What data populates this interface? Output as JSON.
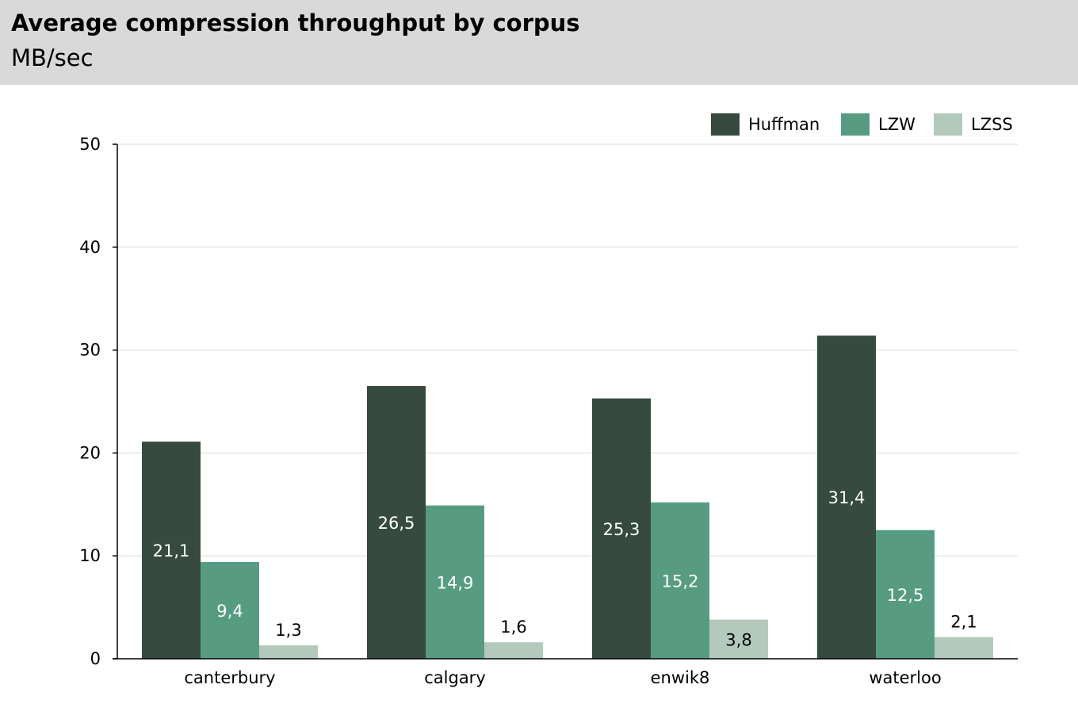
{
  "header": {
    "title": "Average compression throughput by corpus",
    "subtitle": "MB/sec"
  },
  "chart_data": {
    "type": "bar",
    "title": "Average compression throughput by corpus",
    "subtitle": "MB/sec",
    "xlabel": "",
    "ylabel": "",
    "categories": [
      "canterbury",
      "calgary",
      "enwik8",
      "waterloo"
    ],
    "series": [
      {
        "name": "Huffman",
        "color": "#364a3f",
        "values": [
          21.1,
          26.5,
          25.3,
          31.4
        ],
        "labels": [
          "21,1",
          "26,5",
          "25,3",
          "31,4"
        ],
        "label_color": "#ffffff"
      },
      {
        "name": "LZW",
        "color": "#579c82",
        "values": [
          9.4,
          14.9,
          15.2,
          12.5
        ],
        "labels": [
          "9,4",
          "14,9",
          "15,2",
          "12,5"
        ],
        "label_color": "#ffffff"
      },
      {
        "name": "LZSS",
        "color": "#b2c9bc",
        "values": [
          1.3,
          1.6,
          3.8,
          2.1
        ],
        "labels": [
          "1,3",
          "1,6",
          "3,8",
          "2,1"
        ],
        "label_color": "#000000"
      }
    ],
    "ylim": [
      0,
      50
    ],
    "yticks": [
      "0",
      "10",
      "20",
      "30",
      "40",
      "50"
    ],
    "grid": true,
    "legend_position": "top-right"
  }
}
